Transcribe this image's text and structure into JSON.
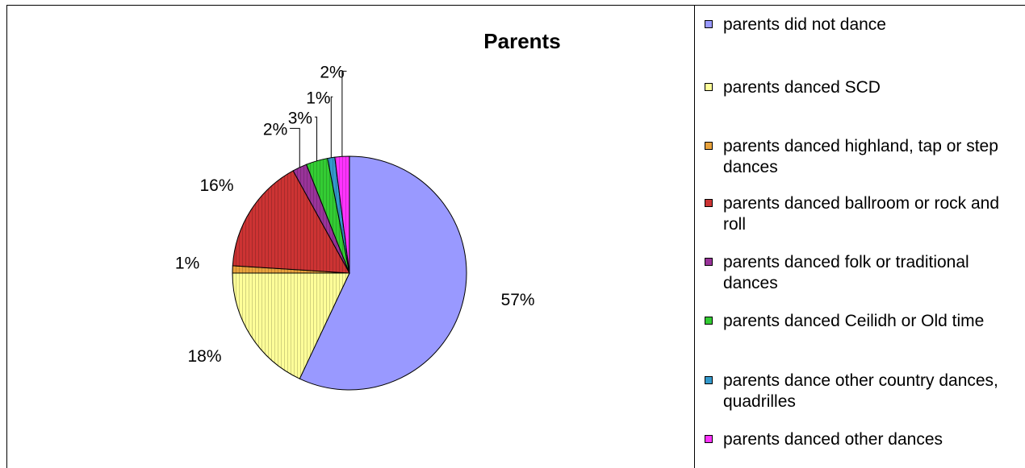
{
  "chart_data": {
    "type": "pie",
    "title": "Parents",
    "categories": [
      "parents did not dance",
      "parents danced SCD",
      "parents danced highland, tap or step dances",
      "parents danced ballroom or rock and roll",
      "parents danced folk or traditional dances",
      "parents danced Ceilidh or Old time",
      "parents dance other country dances, quadrilles",
      "parents danced other dances"
    ],
    "values": [
      57,
      18,
      1,
      16,
      2,
      3,
      1,
      2
    ],
    "data_labels": [
      "57%",
      "18%",
      "1%",
      "16%",
      "2%",
      "3%",
      "1%",
      "2%"
    ],
    "colors": [
      "#9999ff",
      "#ffff99",
      "#e8a23c",
      "#cc3333",
      "#993399",
      "#33cc33",
      "#3399cc",
      "#ff33ff"
    ],
    "legend_position": "right"
  }
}
